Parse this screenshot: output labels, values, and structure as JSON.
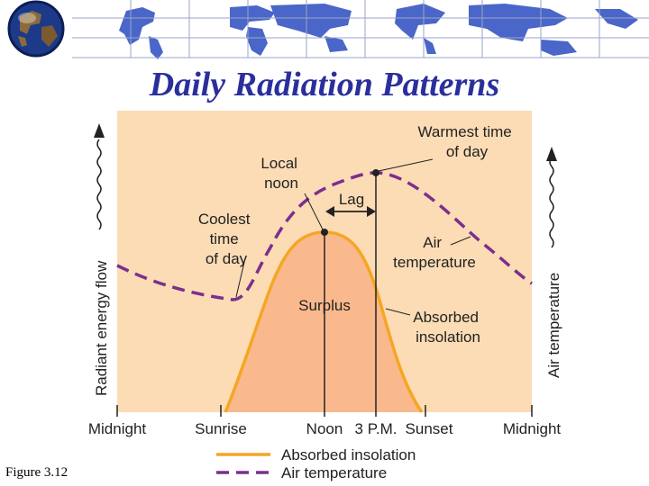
{
  "title": "Daily Radiation Patterns",
  "figure_label": "Figure 3.12",
  "diagram": {
    "y_left_label": "Radiant energy flow",
    "y_right_label": "Air temperature",
    "x_ticks": [
      "Midnight",
      "Sunrise",
      "Noon",
      "3 P.M.",
      "Sunset",
      "Midnight"
    ],
    "annotations": {
      "warmest_line1": "Warmest time",
      "warmest_line2": "of day",
      "local_noon_line1": "Local",
      "local_noon_line2": "noon",
      "lag": "Lag",
      "coolest_line1": "Coolest",
      "coolest_line2": "time",
      "coolest_line3": "of day",
      "air_temp_line1": "Air",
      "air_temp_line2": "temperature",
      "surplus": "Surplus",
      "absorbed_line1": "Absorbed",
      "absorbed_line2": "insolation"
    },
    "legend": [
      {
        "label": "Absorbed insolation",
        "style": "solid",
        "color": "#f5a623"
      },
      {
        "label": "Air temperature",
        "style": "dashed",
        "color": "#7b2f8e"
      }
    ],
    "colors": {
      "background": "#fcdcb5",
      "surplus_fill": "#f9b98d",
      "insolation_line": "#f5a623",
      "temperature_line": "#7b2f8e",
      "title": "#2b2f9c"
    }
  }
}
